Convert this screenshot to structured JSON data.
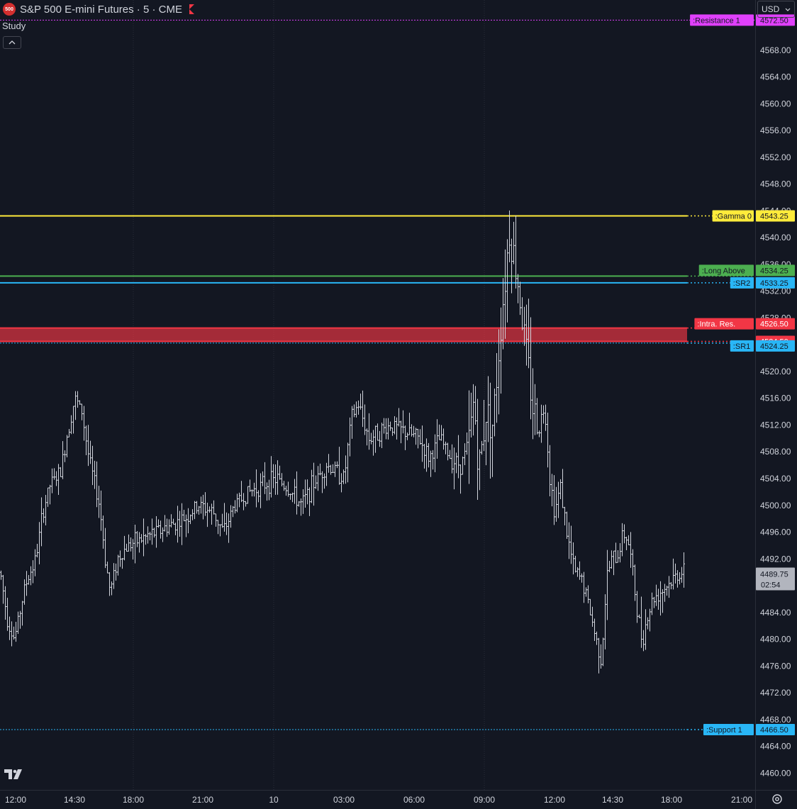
{
  "header": {
    "symbol_badge": "500",
    "title": "S&P 500 E-mini Futures · 5 · CME",
    "study_label": "Study",
    "collapse_icon": "chevron-up-icon",
    "currency": "USD"
  },
  "colors": {
    "background": "#131722",
    "text": "#d1d4dc",
    "bars": "#d1d4dc",
    "resistance": "#e040fb",
    "gamma": "#ffeb3b",
    "long_above": "#4caf50",
    "sr": "#29b6f6",
    "intra_res": "#f23645",
    "price_label": "#b2b5be"
  },
  "chart_data": {
    "type": "ohlc-bar",
    "interval": "5",
    "y_range": [
      4457.5,
      4575.5
    ],
    "y_ticks": [
      4460,
      4464,
      4468,
      4472,
      4476,
      4480,
      4484,
      4488,
      4492,
      4496,
      4500,
      4504,
      4508,
      4512,
      4516,
      4520,
      4524,
      4528,
      4532,
      4536,
      4540,
      4544,
      4548,
      4552,
      4556,
      4560,
      4564,
      4568
    ],
    "x_labels": [
      "12:00",
      "14:30",
      "18:00",
      "21:00",
      "10",
      "03:00",
      "06:00",
      "09:00",
      "12:00",
      "14:30",
      "18:00",
      "21:00"
    ],
    "price_path": [
      [
        0,
        4490
      ],
      [
        10,
        4483
      ],
      [
        20,
        4480
      ],
      [
        35,
        4488
      ],
      [
        50,
        4492
      ],
      [
        60,
        4499
      ],
      [
        70,
        4503
      ],
      [
        85,
        4505
      ],
      [
        95,
        4511
      ],
      [
        105,
        4516
      ],
      [
        115,
        4514
      ],
      [
        125,
        4507
      ],
      [
        140,
        4500
      ],
      [
        148,
        4492
      ],
      [
        155,
        4487
      ],
      [
        165,
        4492
      ],
      [
        180,
        4494
      ],
      [
        200,
        4495
      ],
      [
        220,
        4496
      ],
      [
        240,
        4497
      ],
      [
        260,
        4498
      ],
      [
        280,
        4500
      ],
      [
        300,
        4499
      ],
      [
        315,
        4496
      ],
      [
        330,
        4500
      ],
      [
        350,
        4502
      ],
      [
        370,
        4503
      ],
      [
        390,
        4504
      ],
      [
        410,
        4502
      ],
      [
        425,
        4500
      ],
      [
        440,
        4503
      ],
      [
        460,
        4506
      ],
      [
        475,
        4505
      ],
      [
        485,
        4504
      ],
      [
        495,
        4513
      ],
      [
        505,
        4515
      ],
      [
        520,
        4510
      ],
      [
        535,
        4511
      ],
      [
        550,
        4512
      ],
      [
        570,
        4511
      ],
      [
        590,
        4510
      ],
      [
        605,
        4507
      ],
      [
        620,
        4510
      ],
      [
        635,
        4507
      ],
      [
        650,
        4506
      ],
      [
        662,
        4510
      ],
      [
        668,
        4516
      ],
      [
        675,
        4505
      ],
      [
        685,
        4514
      ],
      [
        695,
        4512
      ],
      [
        705,
        4526
      ],
      [
        712,
        4534
      ],
      [
        718,
        4541
      ],
      [
        725,
        4537
      ],
      [
        732,
        4532
      ],
      [
        738,
        4526
      ],
      [
        745,
        4520
      ],
      [
        752,
        4514
      ],
      [
        760,
        4512
      ],
      [
        768,
        4515
      ],
      [
        775,
        4504
      ],
      [
        782,
        4499
      ],
      [
        790,
        4503
      ],
      [
        800,
        4495
      ],
      [
        810,
        4490
      ],
      [
        820,
        4489
      ],
      [
        830,
        4485
      ],
      [
        840,
        4480
      ],
      [
        848,
        4477
      ],
      [
        855,
        4489
      ],
      [
        862,
        4492
      ],
      [
        870,
        4492
      ],
      [
        878,
        4496
      ],
      [
        885,
        4495
      ],
      [
        892,
        4490
      ],
      [
        898,
        4484
      ],
      [
        905,
        4480
      ],
      [
        912,
        4483
      ],
      [
        920,
        4486
      ],
      [
        930,
        4487
      ],
      [
        940,
        4488
      ],
      [
        950,
        4489
      ],
      [
        958,
        4490
      ],
      [
        965,
        4489.75
      ]
    ],
    "levels": [
      {
        "name": ":Resistance 1",
        "value": "4572.50",
        "price": 4572.5,
        "color": "#e040fb",
        "style": "dotted"
      },
      {
        "name": ":Gamma 0",
        "value": "4543.25",
        "price": 4543.25,
        "color": "#ffeb3b",
        "style": "solid"
      },
      {
        "name": ":Long Above",
        "value": "4534.25",
        "price": 4534.25,
        "color": "#4caf50",
        "style": "solid"
      },
      {
        "name": ":SR2",
        "value": "4533.25",
        "price": 4533.25,
        "color": "#29b6f6",
        "style": "solid"
      },
      {
        "name": ":Intra. Res.",
        "value": "4526.50",
        "price": 4526.5,
        "color": "#f23645",
        "style": "solid"
      },
      {
        "name": "",
        "value": "4524.50",
        "price": 4524.5,
        "color": "#f23645",
        "style": "solid"
      },
      {
        "name": ":SR1",
        "value": "4524.25",
        "price": 4524.25,
        "color": "#29b6f6",
        "style": "dotted"
      },
      {
        "name": ":Support 1",
        "value": "4466.50",
        "price": 4466.5,
        "color": "#29b6f6",
        "style": "dotted"
      }
    ],
    "zone": {
      "from": 4524.5,
      "to": 4526.5,
      "color": "#f23645"
    },
    "last_price": {
      "value": "4489.75",
      "countdown": "02:54",
      "price": 4489.75
    }
  }
}
